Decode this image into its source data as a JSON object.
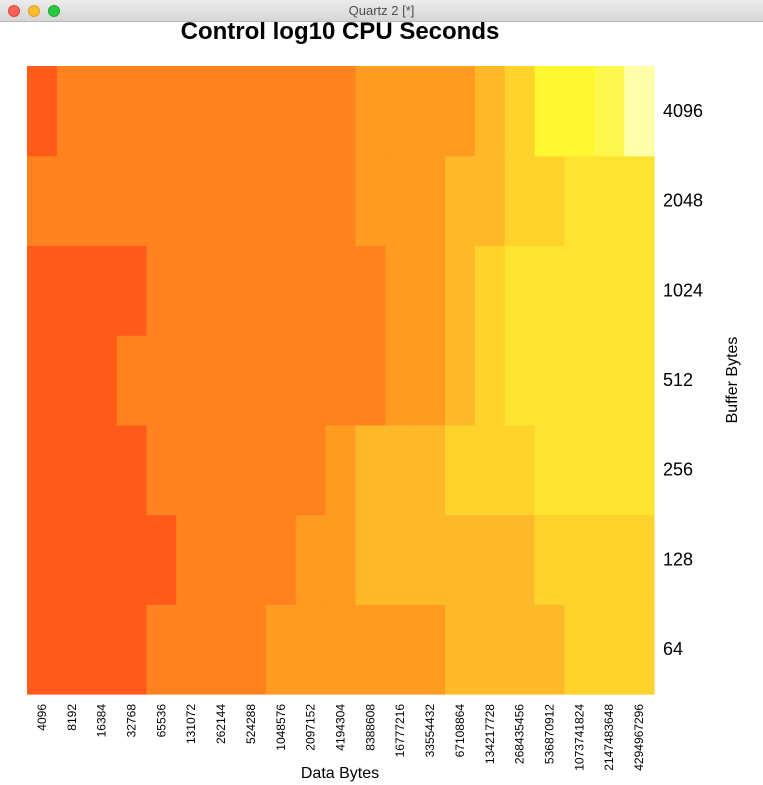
{
  "window": {
    "title": "Quartz 2 [*]"
  },
  "chart_data": {
    "type": "heatmap",
    "title": "Control log10 CPU Seconds",
    "xlabel": "Data Bytes",
    "ylabel": "Buffer Bytes",
    "x_categories": [
      "4096",
      "8192",
      "16384",
      "32768",
      "65536",
      "131072",
      "262144",
      "524288",
      "1048576",
      "2097152",
      "4194304",
      "8388608",
      "16777216",
      "33554432",
      "67108864",
      "134217728",
      "268435456",
      "536870912",
      "1073741824",
      "2147483648",
      "4294967296"
    ],
    "y_categories": [
      "64",
      "128",
      "256",
      "512",
      "1024",
      "2048",
      "4096"
    ],
    "color_scale": [
      "#ff5a1a",
      "#ff821e",
      "#fe9b20",
      "#ffb928",
      "#ffd22c",
      "#ffe331",
      "#fff82e",
      "#fff84c",
      "#fffea9"
    ],
    "levels_note": "Cell values are ordinal color levels (0 = darkest red, 8 = palest yellow) read from the heat colors; the plot shows no numeric color legend.",
    "rows": [
      [
        0,
        0,
        0,
        0,
        1,
        1,
        1,
        1,
        2,
        2,
        2,
        2,
        2,
        2,
        3,
        3,
        3,
        3,
        4,
        4,
        4
      ],
      [
        0,
        0,
        0,
        0,
        0,
        1,
        1,
        1,
        1,
        2,
        2,
        3,
        3,
        3,
        3,
        3,
        3,
        4,
        4,
        4,
        4
      ],
      [
        0,
        0,
        0,
        0,
        1,
        1,
        1,
        1,
        1,
        1,
        2,
        3,
        3,
        3,
        4,
        4,
        4,
        5,
        5,
        5,
        5
      ],
      [
        0,
        0,
        0,
        1,
        1,
        1,
        1,
        1,
        1,
        1,
        1,
        1,
        2,
        2,
        3,
        4,
        5,
        5,
        5,
        5,
        5
      ],
      [
        0,
        0,
        0,
        0,
        1,
        1,
        1,
        1,
        1,
        1,
        1,
        1,
        2,
        2,
        3,
        4,
        5,
        5,
        5,
        5,
        5
      ],
      [
        1,
        1,
        1,
        1,
        1,
        1,
        1,
        1,
        1,
        1,
        1,
        2,
        2,
        2,
        3,
        3,
        4,
        4,
        5,
        5,
        5
      ],
      [
        0,
        1,
        1,
        1,
        1,
        1,
        1,
        1,
        1,
        1,
        1,
        2,
        2,
        2,
        2,
        3,
        4,
        6,
        6,
        7,
        8
      ]
    ]
  }
}
